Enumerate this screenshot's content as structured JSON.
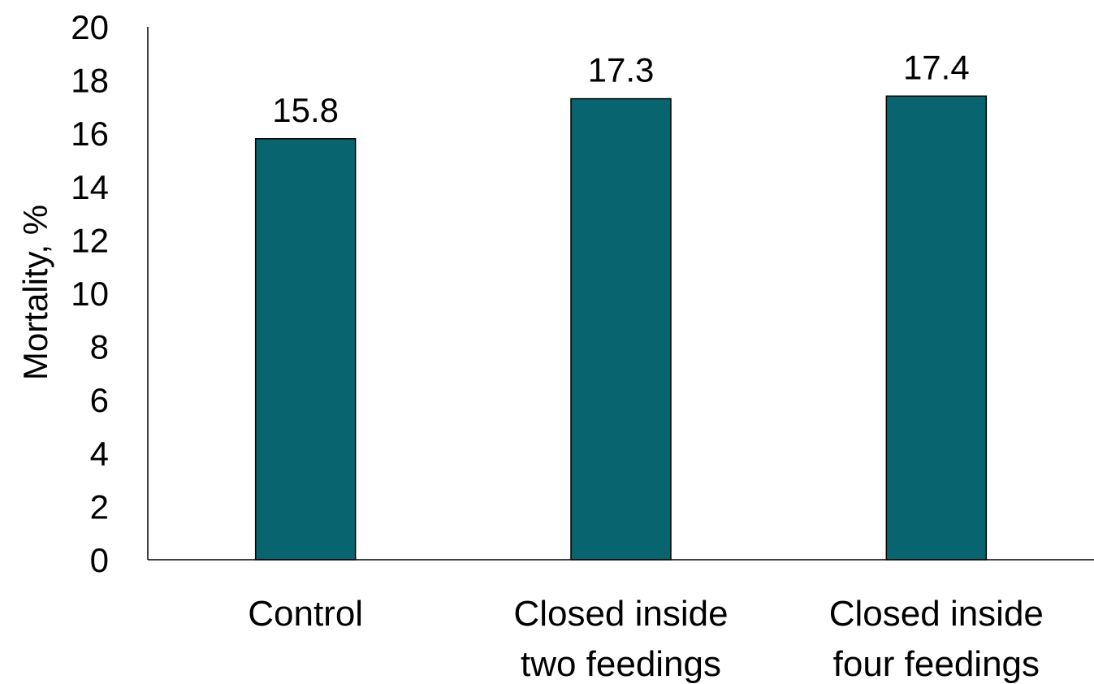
{
  "chart_data": {
    "type": "bar",
    "categories": [
      [
        "Control"
      ],
      [
        "Closed inside",
        "two feedings"
      ],
      [
        "Closed inside",
        "four feedings"
      ]
    ],
    "values": [
      15.8,
      17.3,
      17.4
    ],
    "data_labels": [
      "15.8",
      "17.3",
      "17.4"
    ],
    "title": "",
    "xlabel": "",
    "ylabel": "Mortality, %",
    "ylim": [
      0,
      20
    ],
    "yticks": [
      0,
      2,
      4,
      6,
      8,
      10,
      12,
      14,
      16,
      18,
      20
    ],
    "grid": false,
    "legend": "none",
    "bar_color": "#08646E",
    "bar_edge_color": "#000000"
  }
}
